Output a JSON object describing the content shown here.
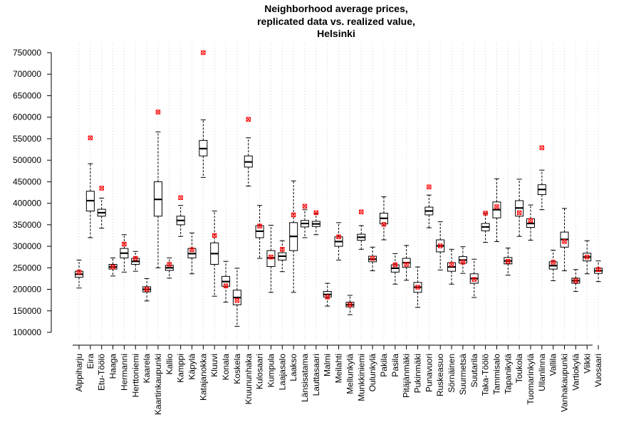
{
  "chart_data": {
    "type": "boxplot",
    "title_lines": [
      "Neighborhood average prices,",
      "replicated data vs. realized value,",
      "Helsinki"
    ],
    "xlabel": "",
    "ylabel": "",
    "ylim": [
      100000,
      750000
    ],
    "yticks": [
      100000,
      150000,
      200000,
      250000,
      300000,
      350000,
      400000,
      450000,
      500000,
      550000,
      600000,
      650000,
      700000,
      750000
    ],
    "grid": "vertical dotted",
    "categories": [
      "Alppiharju",
      "Eira",
      "Etu-Töölö",
      "Haaga",
      "Hermanni",
      "Herttoniemi",
      "Kaarela",
      "Kaartinkaupunki",
      "Kallio",
      "Kamppi",
      "Käpylä",
      "Katajanokka",
      "Kluuvi",
      "Konala",
      "Koskela",
      "Kruununhaka",
      "Kulosaari",
      "Kumpula",
      "Laajasalo",
      "Laakso",
      "Länsisatama",
      "Lauttasaari",
      "Malmi",
      "Meilahti",
      "Mellunkylä",
      "Munkkiniemi",
      "Oulunkylä",
      "Pakila",
      "Pasila",
      "Pitäjänmäki",
      "Pukinmäki",
      "Punavuori",
      "Ruskeasuo",
      "Sörnäinen",
      "Suurmetsä",
      "Suutarila",
      "Taka-Töölö",
      "Tammisalo",
      "Tapanikylä",
      "Toukola",
      "Tuomarinkylä",
      "Ullanlinna",
      "Vallila",
      "Vanhakaupunki",
      "Vartiokylä",
      "Viikki",
      "Vuosaari"
    ],
    "series": [
      {
        "whisker_low": 203000,
        "q1": 228000,
        "median": 235000,
        "q3": 242000,
        "whisker_high": 268000,
        "realized": 240000
      },
      {
        "whisker_low": 320000,
        "q1": 382000,
        "median": 406000,
        "q3": 428000,
        "whisker_high": 492000,
        "realized": 552000
      },
      {
        "whisker_low": 342000,
        "q1": 370000,
        "median": 378000,
        "q3": 386000,
        "whisker_high": 412000,
        "realized": 435000
      },
      {
        "whisker_low": 231000,
        "q1": 247000,
        "median": 252000,
        "q3": 258000,
        "whisker_high": 273000,
        "realized": 252000
      },
      {
        "whisker_low": 240000,
        "q1": 273000,
        "median": 284000,
        "q3": 295000,
        "whisker_high": 327000,
        "realized": 305000
      },
      {
        "whisker_low": 242000,
        "q1": 258000,
        "median": 265000,
        "q3": 272000,
        "whisker_high": 288000,
        "realized": 272000
      },
      {
        "whisker_low": 173000,
        "q1": 194000,
        "median": 200000,
        "q3": 206000,
        "whisker_high": 225000,
        "realized": 200000
      },
      {
        "whisker_low": 250000,
        "q1": 370000,
        "median": 409000,
        "q3": 450000,
        "whisker_high": 566000,
        "realized": 612000
      },
      {
        "whisker_low": 226000,
        "q1": 244000,
        "median": 250000,
        "q3": 256000,
        "whisker_high": 273000,
        "realized": 258000
      },
      {
        "whisker_low": 323000,
        "q1": 350000,
        "median": 360000,
        "q3": 370000,
        "whisker_high": 395000,
        "realized": 413000
      },
      {
        "whisker_low": 236000,
        "q1": 273000,
        "median": 283000,
        "q3": 295000,
        "whisker_high": 331000,
        "realized": 292000
      },
      {
        "whisker_low": 460000,
        "q1": 510000,
        "median": 527000,
        "q3": 546000,
        "whisker_high": 594000,
        "realized": 750000
      },
      {
        "whisker_low": 184000,
        "q1": 258000,
        "median": 283000,
        "q3": 308000,
        "whisker_high": 382000,
        "realized": 325000
      },
      {
        "whisker_low": 170000,
        "q1": 207000,
        "median": 218000,
        "q3": 230000,
        "whisker_high": 265000,
        "realized": 208000
      },
      {
        "whisker_low": 114000,
        "q1": 164000,
        "median": 181000,
        "q3": 198000,
        "whisker_high": 249000,
        "realized": 174000
      },
      {
        "whisker_low": 440000,
        "q1": 484000,
        "median": 496000,
        "q3": 510000,
        "whisker_high": 552000,
        "realized": 595000
      },
      {
        "whisker_low": 272000,
        "q1": 320000,
        "median": 335000,
        "q3": 348000,
        "whisker_high": 395000,
        "realized": 347000
      },
      {
        "whisker_low": 193000,
        "q1": 253000,
        "median": 273000,
        "q3": 290000,
        "whisker_high": 349000,
        "realized": 275000
      },
      {
        "whisker_low": 241000,
        "q1": 268000,
        "median": 277000,
        "q3": 285000,
        "whisker_high": 313000,
        "realized": 293000
      },
      {
        "whisker_low": 193000,
        "q1": 290000,
        "median": 323000,
        "q3": 355000,
        "whisker_high": 452000,
        "realized": 373000
      },
      {
        "whisker_low": 320000,
        "q1": 345000,
        "median": 353000,
        "q3": 360000,
        "whisker_high": 385000,
        "realized": 393000
      },
      {
        "whisker_low": 327000,
        "q1": 346000,
        "median": 352000,
        "q3": 358000,
        "whisker_high": 377000,
        "realized": 378000
      },
      {
        "whisker_low": 161000,
        "q1": 182000,
        "median": 188000,
        "q3": 195000,
        "whisker_high": 214000,
        "realized": 182000
      },
      {
        "whisker_low": 268000,
        "q1": 300000,
        "median": 311000,
        "q3": 322000,
        "whisker_high": 355000,
        "realized": 322000
      },
      {
        "whisker_low": 141000,
        "q1": 159000,
        "median": 164000,
        "q3": 170000,
        "whisker_high": 186000,
        "realized": 164000
      },
      {
        "whisker_low": 293000,
        "q1": 314000,
        "median": 321000,
        "q3": 328000,
        "whisker_high": 348000,
        "realized": 380000
      },
      {
        "whisker_low": 243000,
        "q1": 264000,
        "median": 270000,
        "q3": 277000,
        "whisker_high": 298000,
        "realized": 272000
      },
      {
        "whisker_low": 315000,
        "q1": 352000,
        "median": 365000,
        "q3": 377000,
        "whisker_high": 415000,
        "realized": 351000
      },
      {
        "whisker_low": 212000,
        "q1": 240000,
        "median": 249000,
        "q3": 257000,
        "whisker_high": 283000,
        "realized": 257000
      },
      {
        "whisker_low": 221000,
        "q1": 251000,
        "median": 262000,
        "q3": 272000,
        "whisker_high": 302000,
        "realized": 258000
      },
      {
        "whisker_low": 158000,
        "q1": 193000,
        "median": 205000,
        "q3": 216000,
        "whisker_high": 252000,
        "realized": 205000
      },
      {
        "whisker_low": 343000,
        "q1": 373000,
        "median": 382000,
        "q3": 391000,
        "whisker_high": 419000,
        "realized": 438000
      },
      {
        "whisker_low": 245000,
        "q1": 287000,
        "median": 301000,
        "q3": 315000,
        "whisker_high": 357000,
        "realized": 301000
      },
      {
        "whisker_low": 212000,
        "q1": 242000,
        "median": 252000,
        "q3": 262000,
        "whisker_high": 293000,
        "realized": 258000
      },
      {
        "whisker_low": 237000,
        "q1": 261000,
        "median": 268000,
        "q3": 276000,
        "whisker_high": 299000,
        "realized": 263000
      },
      {
        "whisker_low": 181000,
        "q1": 214000,
        "median": 225000,
        "q3": 236000,
        "whisker_high": 270000,
        "realized": 223000
      },
      {
        "whisker_low": 309000,
        "q1": 336000,
        "median": 345000,
        "q3": 353000,
        "whisker_high": 377000,
        "realized": 377000
      },
      {
        "whisker_low": 311000,
        "q1": 366000,
        "median": 385000,
        "q3": 403000,
        "whisker_high": 457000,
        "realized": 392000
      },
      {
        "whisker_low": 233000,
        "q1": 259000,
        "median": 266000,
        "q3": 274000,
        "whisker_high": 296000,
        "realized": 265000
      },
      {
        "whisker_low": 323000,
        "q1": 370000,
        "median": 389000,
        "q3": 406000,
        "whisker_high": 456000,
        "realized": 378000
      },
      {
        "whisker_low": 314000,
        "q1": 344000,
        "median": 353000,
        "q3": 364000,
        "whisker_high": 396000,
        "realized": 360000
      },
      {
        "whisker_low": 385000,
        "q1": 420000,
        "median": 432000,
        "q3": 443000,
        "whisker_high": 477000,
        "realized": 529000
      },
      {
        "whisker_low": 220000,
        "q1": 247000,
        "median": 255000,
        "q3": 264000,
        "whisker_high": 291000,
        "realized": 263000
      },
      {
        "whisker_low": 243000,
        "q1": 298000,
        "median": 316000,
        "q3": 333000,
        "whisker_high": 388000,
        "realized": 311000
      },
      {
        "whisker_low": 195000,
        "q1": 214000,
        "median": 220000,
        "q3": 226000,
        "whisker_high": 246000,
        "realized": 220000
      },
      {
        "whisker_low": 236000,
        "q1": 266000,
        "median": 275000,
        "q3": 284000,
        "whisker_high": 313000,
        "realized": 275000
      },
      {
        "whisker_low": 218000,
        "q1": 237000,
        "median": 243000,
        "q3": 249000,
        "whisker_high": 266000,
        "realized": 246000
      }
    ],
    "colors": {
      "box": "#000000",
      "realized_marker": "#ff0000",
      "grid": "#d3d3d3"
    }
  }
}
